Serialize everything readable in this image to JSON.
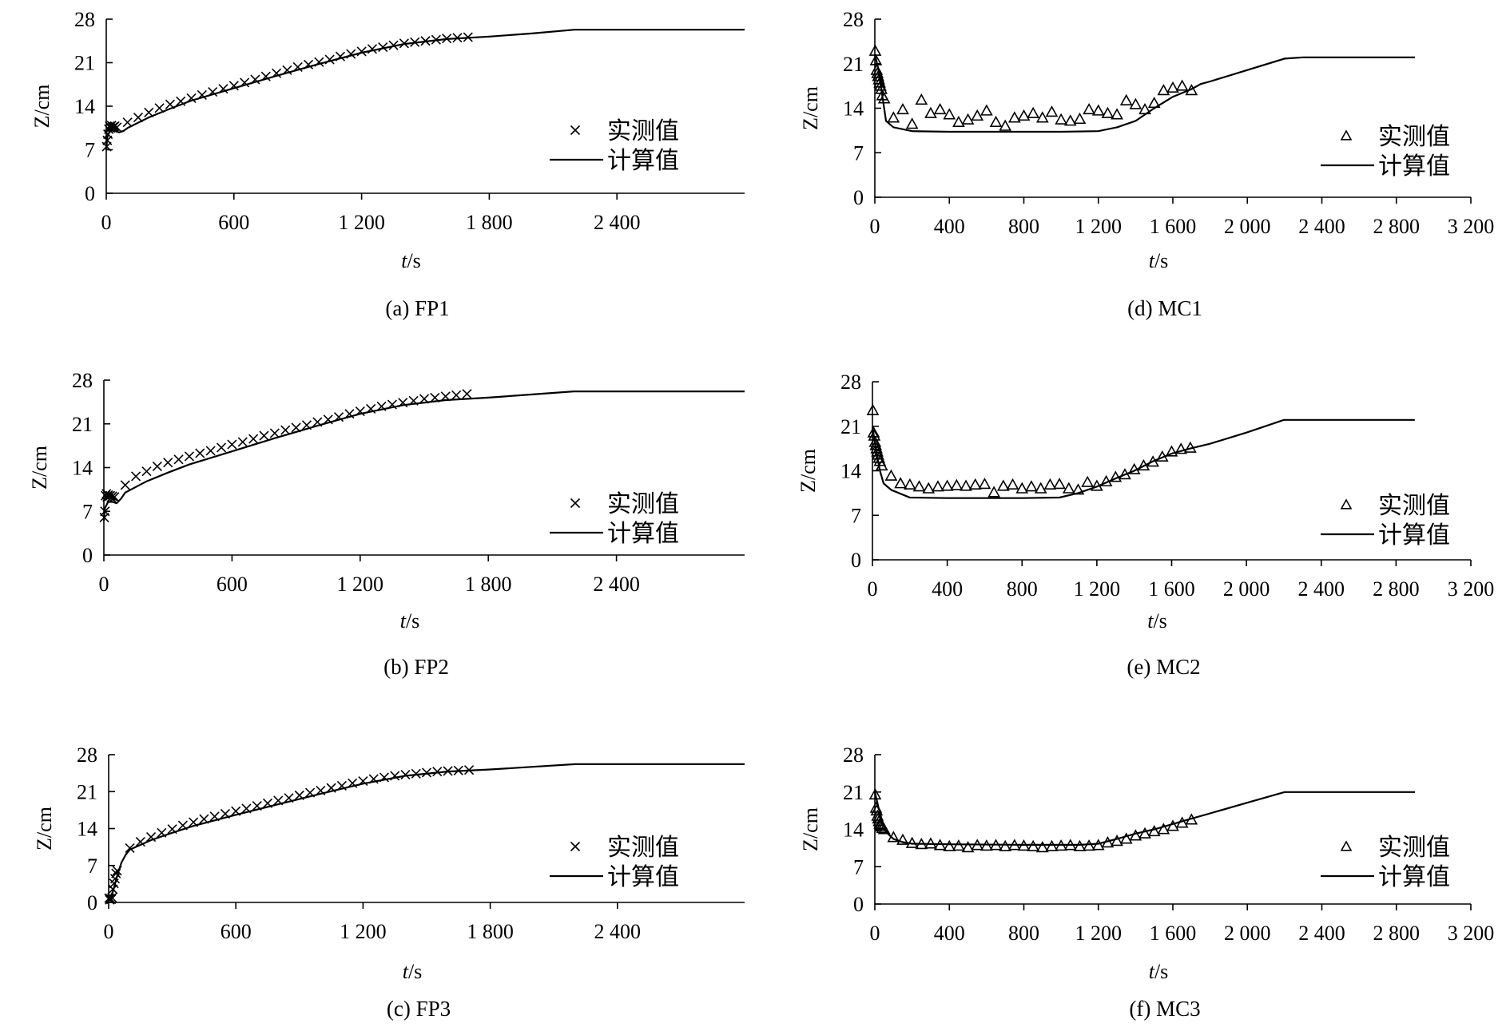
{
  "chart_data": [
    {
      "type": "line",
      "caption": "(a) FP1",
      "xlabel_italic": "t",
      "xlabel_unit": "/s",
      "ylabel": "Z/cm",
      "xlim": [
        0,
        3000
      ],
      "ylim": [
        0,
        28
      ],
      "xticks": [
        0,
        600,
        1200,
        1800,
        2400
      ],
      "xtick_labels": [
        "0",
        "600",
        "1 200",
        "1 800",
        "2 400"
      ],
      "yticks": [
        0,
        7,
        14,
        21,
        28
      ],
      "ytick_labels": [
        "0",
        "7",
        "14",
        "21",
        "28"
      ],
      "legend": {
        "measured": "实测值",
        "computed": "计算值",
        "measured_marker": "cross"
      },
      "series": [
        {
          "name": "实测值",
          "marker": "cross",
          "x": [
            2,
            5,
            8,
            12,
            16,
            20,
            25,
            30,
            35,
            40,
            50,
            100,
            150,
            200,
            250,
            300,
            350,
            400,
            450,
            500,
            550,
            600,
            650,
            700,
            750,
            800,
            850,
            900,
            950,
            1000,
            1050,
            1100,
            1150,
            1200,
            1250,
            1300,
            1350,
            1400,
            1450,
            1500,
            1550,
            1600,
            1650,
            1700
          ],
          "y": [
            7.5,
            8.5,
            9.5,
            10.3,
            10.8,
            10.5,
            10.9,
            10.6,
            10.7,
            10.8,
            10.6,
            11.4,
            12.2,
            13.0,
            13.7,
            14.3,
            14.8,
            15.3,
            15.8,
            16.3,
            16.8,
            17.3,
            17.8,
            18.3,
            18.8,
            19.3,
            19.8,
            20.3,
            20.7,
            21.1,
            21.5,
            22.0,
            22.4,
            22.8,
            23.2,
            23.5,
            23.8,
            24.1,
            24.3,
            24.5,
            24.7,
            24.9,
            25.0,
            25.1
          ]
        },
        {
          "name": "计算值",
          "line": true,
          "x": [
            0,
            5,
            20,
            40,
            60,
            80,
            100,
            200,
            300,
            400,
            600,
            800,
            1000,
            1200,
            1400,
            1600,
            1800,
            2000,
            2200,
            3000
          ],
          "y": [
            7.0,
            9.0,
            10.3,
            10.0,
            9.8,
            10.0,
            10.5,
            12.2,
            13.6,
            14.9,
            16.9,
            18.9,
            20.8,
            22.6,
            24.0,
            24.8,
            25.2,
            25.7,
            26.3,
            26.3
          ]
        }
      ]
    },
    {
      "type": "line",
      "caption": "(b) FP2",
      "xlabel_italic": "t",
      "xlabel_unit": "/s",
      "ylabel": "Z/cm",
      "xlim": [
        0,
        3000
      ],
      "ylim": [
        0,
        28
      ],
      "xticks": [
        0,
        600,
        1200,
        1800,
        2400
      ],
      "xtick_labels": [
        "0",
        "600",
        "1 200",
        "1 800",
        "2 400"
      ],
      "yticks": [
        0,
        7,
        14,
        21,
        28
      ],
      "ytick_labels": [
        "0",
        "7",
        "14",
        "21",
        "28"
      ],
      "legend": {
        "measured": "实测值",
        "computed": "计算值",
        "measured_marker": "cross"
      },
      "series": [
        {
          "name": "实测值",
          "marker": "cross",
          "x": [
            2,
            5,
            8,
            12,
            16,
            20,
            25,
            30,
            35,
            40,
            50,
            100,
            150,
            200,
            250,
            300,
            350,
            400,
            450,
            500,
            550,
            600,
            650,
            700,
            750,
            800,
            850,
            900,
            950,
            1000,
            1050,
            1100,
            1150,
            1200,
            1250,
            1300,
            1350,
            1400,
            1450,
            1500,
            1550,
            1600,
            1650,
            1700
          ],
          "y": [
            6.0,
            7.0,
            9.5,
            9.8,
            9.3,
            9.6,
            9.4,
            9.5,
            9.2,
            9.4,
            9.3,
            11.2,
            12.6,
            13.4,
            14.2,
            14.8,
            15.3,
            15.8,
            16.3,
            16.7,
            17.2,
            17.7,
            18.1,
            18.6,
            19.1,
            19.5,
            20.0,
            20.4,
            20.8,
            21.3,
            21.7,
            22.1,
            22.6,
            23.0,
            23.4,
            23.8,
            24.1,
            24.4,
            24.7,
            25.0,
            25.2,
            25.4,
            25.6,
            25.8
          ]
        },
        {
          "name": "计算值",
          "line": true,
          "x": [
            0,
            5,
            20,
            40,
            60,
            80,
            100,
            200,
            300,
            400,
            600,
            800,
            1000,
            1200,
            1400,
            1600,
            1800,
            2000,
            2200,
            3000
          ],
          "y": [
            5.5,
            7.5,
            8.5,
            8.5,
            8.3,
            9.0,
            10.0,
            11.8,
            13.2,
            14.5,
            16.6,
            18.7,
            20.7,
            22.6,
            24.0,
            24.8,
            25.2,
            25.7,
            26.2,
            26.2
          ]
        }
      ]
    },
    {
      "type": "line",
      "caption": "(c) FP3",
      "xlabel_italic": "t",
      "xlabel_unit": "/s",
      "ylabel": "Z/cm",
      "xlim": [
        0,
        3000
      ],
      "ylim": [
        0,
        28
      ],
      "xticks": [
        0,
        600,
        1200,
        1800,
        2400
      ],
      "xtick_labels": [
        "0",
        "600",
        "1 200",
        "1 800",
        "2 400"
      ],
      "yticks": [
        0,
        7,
        14,
        21,
        28
      ],
      "ytick_labels": [
        "0",
        "7",
        "14",
        "21",
        "28"
      ],
      "legend": {
        "measured": "实测值",
        "computed": "计算值",
        "measured_marker": "cross"
      },
      "series": [
        {
          "name": "实测值",
          "marker": "cross",
          "x": [
            2,
            5,
            8,
            12,
            16,
            20,
            25,
            30,
            35,
            40,
            100,
            150,
            200,
            250,
            300,
            350,
            400,
            450,
            500,
            550,
            600,
            650,
            700,
            750,
            800,
            850,
            900,
            950,
            1000,
            1050,
            1100,
            1150,
            1200,
            1250,
            1300,
            1350,
            1400,
            1450,
            1500,
            1550,
            1600,
            1650,
            1700
          ],
          "y": [
            0.8,
            0.5,
            0.7,
            0.6,
            0.9,
            2.5,
            3.6,
            4.5,
            5.5,
            6.0,
            10.3,
            11.5,
            12.4,
            13.2,
            13.9,
            14.6,
            15.2,
            15.8,
            16.3,
            16.8,
            17.3,
            17.8,
            18.3,
            18.8,
            19.3,
            19.8,
            20.3,
            20.8,
            21.2,
            21.7,
            22.1,
            22.6,
            23.0,
            23.4,
            23.7,
            24.0,
            24.2,
            24.4,
            24.6,
            24.8,
            24.9,
            25.0,
            25.1
          ]
        },
        {
          "name": "计算值",
          "line": true,
          "x": [
            0,
            20,
            40,
            60,
            80,
            100,
            200,
            300,
            400,
            600,
            800,
            1000,
            1200,
            1400,
            1600,
            1800,
            2000,
            2200,
            3000
          ],
          "y": [
            0.5,
            2.0,
            5.0,
            7.5,
            9.0,
            10.0,
            11.8,
            13.2,
            14.5,
            16.6,
            18.6,
            20.6,
            22.5,
            24.0,
            24.8,
            25.2,
            25.7,
            26.2,
            26.2
          ]
        }
      ]
    },
    {
      "type": "line",
      "caption": "(d) MC1",
      "xlabel_italic": "t",
      "xlabel_unit": "/s",
      "ylabel": "Z/cm",
      "xlim": [
        0,
        3200
      ],
      "ylim": [
        0,
        28
      ],
      "xticks": [
        0,
        400,
        800,
        1200,
        1600,
        2000,
        2400,
        2800,
        3200
      ],
      "xtick_labels": [
        "0",
        "400",
        "800",
        "1 200",
        "1 600",
        "2 000",
        "2 400",
        "2 800",
        "3 200"
      ],
      "yticks": [
        0,
        7,
        14,
        21,
        28
      ],
      "ytick_labels": [
        "0",
        "7",
        "14",
        "21",
        "28"
      ],
      "legend": {
        "measured": "实测值",
        "computed": "计算值",
        "measured_marker": "triangle"
      },
      "series": [
        {
          "name": "实测值",
          "marker": "triangle",
          "x": [
            2,
            6,
            10,
            14,
            18,
            22,
            26,
            30,
            35,
            40,
            50,
            100,
            150,
            200,
            250,
            300,
            350,
            400,
            450,
            500,
            550,
            600,
            650,
            700,
            750,
            800,
            850,
            900,
            950,
            1000,
            1050,
            1100,
            1150,
            1200,
            1250,
            1300,
            1350,
            1400,
            1450,
            1500,
            1550,
            1600,
            1650,
            1700
          ],
          "y": [
            23.0,
            21.5,
            20.0,
            19.5,
            19.0,
            18.5,
            18.0,
            17.5,
            17.0,
            16.0,
            15.5,
            12.5,
            13.8,
            11.5,
            15.3,
            13.2,
            13.8,
            13.0,
            11.8,
            12.2,
            12.8,
            13.6,
            11.8,
            11.2,
            12.5,
            12.8,
            13.2,
            12.5,
            13.4,
            12.2,
            12.0,
            12.3,
            13.8,
            13.6,
            13.2,
            13.0,
            15.2,
            14.6,
            13.8,
            14.8,
            16.8,
            17.2,
            17.5,
            16.8
          ]
        },
        {
          "name": "计算值",
          "line": true,
          "x": [
            0,
            20,
            40,
            60,
            100,
            200,
            400,
            800,
            1000,
            1200,
            1300,
            1400,
            1500,
            1600,
            1700,
            1750,
            1800,
            2000,
            2200,
            2300,
            2900
          ],
          "y": [
            22.5,
            20.0,
            16.0,
            12.0,
            11.0,
            10.4,
            10.3,
            10.3,
            10.3,
            10.4,
            11.0,
            12.0,
            14.0,
            15.8,
            17.0,
            17.8,
            18.2,
            20.0,
            21.8,
            22.0,
            22.0
          ]
        }
      ]
    },
    {
      "type": "line",
      "caption": "(e) MC2",
      "xlabel_italic": "t",
      "xlabel_unit": "/s",
      "ylabel": "Z/cm",
      "xlim": [
        0,
        3200
      ],
      "ylim": [
        0,
        28
      ],
      "xticks": [
        0,
        400,
        800,
        1200,
        1600,
        2000,
        2400,
        2800,
        3200
      ],
      "xtick_labels": [
        "0",
        "400",
        "800",
        "1 200",
        "1 600",
        "2 000",
        "2 400",
        "2 800",
        "3 200"
      ],
      "yticks": [
        0,
        7,
        14,
        21,
        28
      ],
      "ytick_labels": [
        "0",
        "7",
        "14",
        "21",
        "28"
      ],
      "legend": {
        "measured": "实测值",
        "computed": "计算值",
        "measured_marker": "triangle"
      },
      "series": [
        {
          "name": "实测值",
          "marker": "triangle",
          "x": [
            2,
            6,
            10,
            14,
            18,
            22,
            26,
            30,
            35,
            40,
            50,
            100,
            150,
            200,
            250,
            300,
            350,
            400,
            450,
            500,
            550,
            600,
            650,
            700,
            750,
            800,
            850,
            900,
            950,
            1000,
            1050,
            1100,
            1150,
            1200,
            1250,
            1300,
            1350,
            1400,
            1450,
            1500,
            1550,
            1600,
            1650,
            1700
          ],
          "y": [
            23.5,
            20.0,
            19.5,
            18.5,
            18.0,
            17.5,
            17.0,
            16.5,
            16.0,
            15.5,
            14.8,
            13.2,
            12.0,
            11.8,
            11.5,
            11.2,
            11.5,
            11.6,
            11.7,
            11.6,
            11.8,
            11.9,
            10.6,
            11.6,
            11.8,
            11.2,
            11.5,
            11.2,
            11.8,
            11.9,
            11.2,
            11.0,
            12.2,
            11.6,
            12.3,
            13.0,
            13.4,
            14.2,
            14.8,
            15.4,
            16.2,
            17.0,
            17.4,
            17.6
          ]
        },
        {
          "name": "计算值",
          "line": true,
          "x": [
            0,
            20,
            40,
            60,
            100,
            200,
            400,
            800,
            1000,
            1100,
            1200,
            1300,
            1400,
            1500,
            1600,
            1700,
            1800,
            2000,
            2200,
            2900
          ],
          "y": [
            21.0,
            17.0,
            14.0,
            12.0,
            11.0,
            9.8,
            9.7,
            9.7,
            9.8,
            10.5,
            11.5,
            12.8,
            14.0,
            15.5,
            16.7,
            17.5,
            18.2,
            20.0,
            22.0,
            22.0
          ]
        }
      ]
    },
    {
      "type": "line",
      "caption": "(f) MC3",
      "xlabel_italic": "t",
      "xlabel_unit": "/s",
      "ylabel": "Z/cm",
      "xlim": [
        0,
        3200
      ],
      "ylim": [
        0,
        28
      ],
      "xticks": [
        0,
        400,
        800,
        1200,
        1600,
        2000,
        2400,
        2800,
        3200
      ],
      "xtick_labels": [
        "0",
        "400",
        "800",
        "1 200",
        "1 600",
        "2 000",
        "2 400",
        "2 800",
        "3 200"
      ],
      "yticks": [
        0,
        7,
        14,
        21,
        28
      ],
      "ytick_labels": [
        "0",
        "7",
        "14",
        "21",
        "28"
      ],
      "legend": {
        "measured": "实测值",
        "computed": "计算值",
        "measured_marker": "triangle"
      },
      "series": [
        {
          "name": "实测值",
          "marker": "triangle",
          "x": [
            2,
            6,
            10,
            14,
            18,
            22,
            26,
            30,
            35,
            40,
            50,
            100,
            150,
            200,
            250,
            300,
            350,
            400,
            450,
            500,
            550,
            600,
            650,
            700,
            750,
            800,
            850,
            900,
            950,
            1000,
            1050,
            1100,
            1150,
            1200,
            1250,
            1300,
            1350,
            1400,
            1450,
            1500,
            1550,
            1600,
            1650,
            1700
          ],
          "y": [
            20.5,
            18.0,
            17.5,
            16.5,
            16.0,
            15.5,
            15.0,
            14.8,
            14.5,
            14.2,
            14.0,
            12.5,
            12.0,
            11.4,
            11.2,
            11.3,
            11.0,
            10.8,
            10.9,
            10.6,
            11.0,
            10.9,
            11.0,
            10.8,
            11.0,
            10.9,
            10.8,
            10.6,
            10.8,
            10.9,
            11.0,
            10.8,
            10.9,
            11.0,
            11.5,
            11.8,
            12.2,
            12.8,
            13.2,
            13.6,
            14.0,
            14.6,
            15.2,
            15.8
          ]
        },
        {
          "name": "计算值",
          "line": true,
          "x": [
            0,
            20,
            40,
            60,
            100,
            150,
            200,
            400,
            800,
            1100,
            1200,
            1300,
            1400,
            1500,
            1600,
            1700,
            1800,
            2000,
            2200,
            2900
          ],
          "y": [
            21.0,
            18.0,
            15.5,
            13.5,
            12.2,
            11.6,
            11.3,
            11.2,
            11.1,
            11.1,
            11.3,
            12.2,
            13.2,
            14.0,
            15.0,
            16.0,
            17.0,
            19.0,
            21.0,
            21.0
          ]
        }
      ]
    }
  ]
}
